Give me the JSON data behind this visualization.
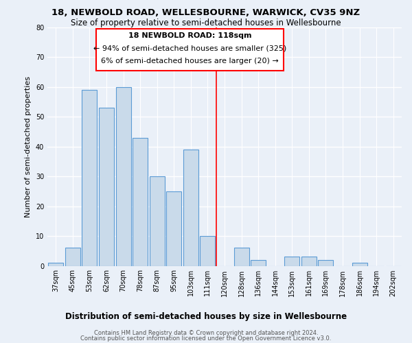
{
  "title": "18, NEWBOLD ROAD, WELLESBOURNE, WARWICK, CV35 9NZ",
  "subtitle": "Size of property relative to semi-detached houses in Wellesbourne",
  "xlabel_bottom": "Distribution of semi-detached houses by size in Wellesbourne",
  "ylabel": "Number of semi-detached properties",
  "categories": [
    "37sqm",
    "45sqm",
    "53sqm",
    "62sqm",
    "70sqm",
    "78sqm",
    "87sqm",
    "95sqm",
    "103sqm",
    "111sqm",
    "120sqm",
    "128sqm",
    "136sqm",
    "144sqm",
    "153sqm",
    "161sqm",
    "169sqm",
    "178sqm",
    "186sqm",
    "194sqm",
    "202sqm"
  ],
  "values": [
    1,
    6,
    59,
    53,
    60,
    43,
    30,
    25,
    39,
    10,
    0,
    6,
    2,
    0,
    3,
    3,
    2,
    0,
    1,
    0,
    0
  ],
  "bar_color": "#c9daea",
  "bar_edge_color": "#5b9bd5",
  "background_color": "#eaf0f8",
  "grid_color": "#ffffff",
  "property_label": "18 NEWBOLD ROAD: 118sqm",
  "annotation_line1": "← 94% of semi-detached houses are smaller (325)",
  "annotation_line2": "6% of semi-detached houses are larger (20) →",
  "ylim": [
    0,
    80
  ],
  "yticks": [
    0,
    10,
    20,
    30,
    40,
    50,
    60,
    70,
    80
  ],
  "footer_line1": "Contains HM Land Registry data © Crown copyright and database right 2024.",
  "footer_line2": "Contains public sector information licensed under the Open Government Licence v3.0.",
  "title_fontsize": 9.5,
  "subtitle_fontsize": 8.5,
  "tick_fontsize": 7,
  "ylabel_fontsize": 8,
  "annotation_fontsize": 8,
  "xlabel_fontsize": 8.5,
  "footer_fontsize": 6
}
